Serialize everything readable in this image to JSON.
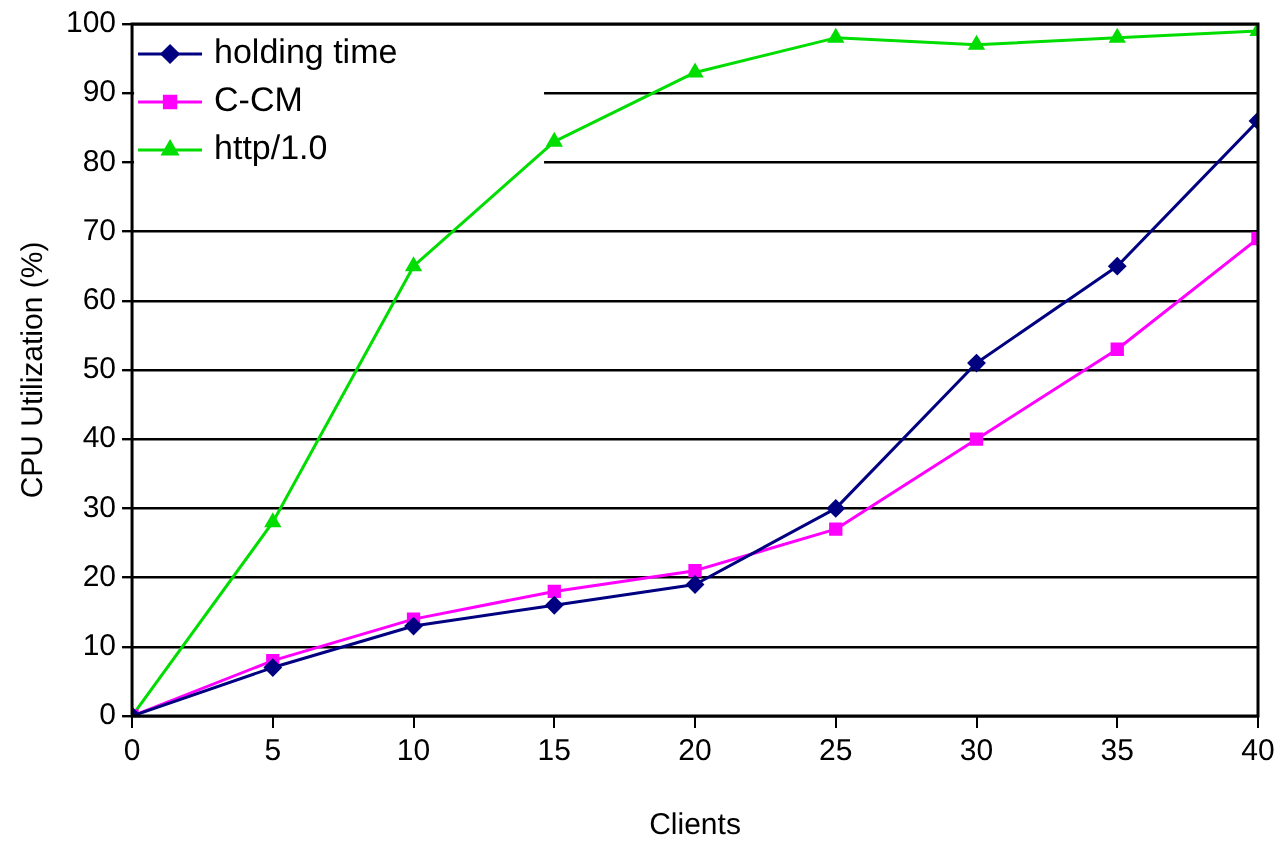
{
  "chart_data": {
    "type": "line",
    "xlabel": "Clients",
    "ylabel": "CPU Utilization (%)",
    "x": [
      0,
      5,
      10,
      15,
      20,
      25,
      30,
      35,
      40
    ],
    "series": [
      {
        "name": "holding time",
        "color": "#000080",
        "marker": "diamond",
        "values": [
          0,
          7,
          13,
          16,
          19,
          30,
          51,
          65,
          86
        ]
      },
      {
        "name": "C-CM",
        "color": "#ff00ff",
        "marker": "square",
        "values": [
          0,
          8,
          14,
          18,
          21,
          27,
          40,
          53,
          69
        ]
      },
      {
        "name": "http/1.0",
        "color": "#00dd00",
        "marker": "triangle",
        "values": [
          0,
          28,
          65,
          83,
          93,
          98,
          97,
          98,
          99
        ]
      }
    ],
    "xlim": [
      0,
      40
    ],
    "xticks": [
      0,
      5,
      10,
      15,
      20,
      25,
      30,
      35,
      40
    ],
    "ylim": [
      0,
      100
    ],
    "yticks": [
      0,
      10,
      20,
      30,
      40,
      50,
      60,
      70,
      80,
      90,
      100
    ],
    "grid": "y",
    "legend": "top left",
    "line_style": "solid"
  }
}
